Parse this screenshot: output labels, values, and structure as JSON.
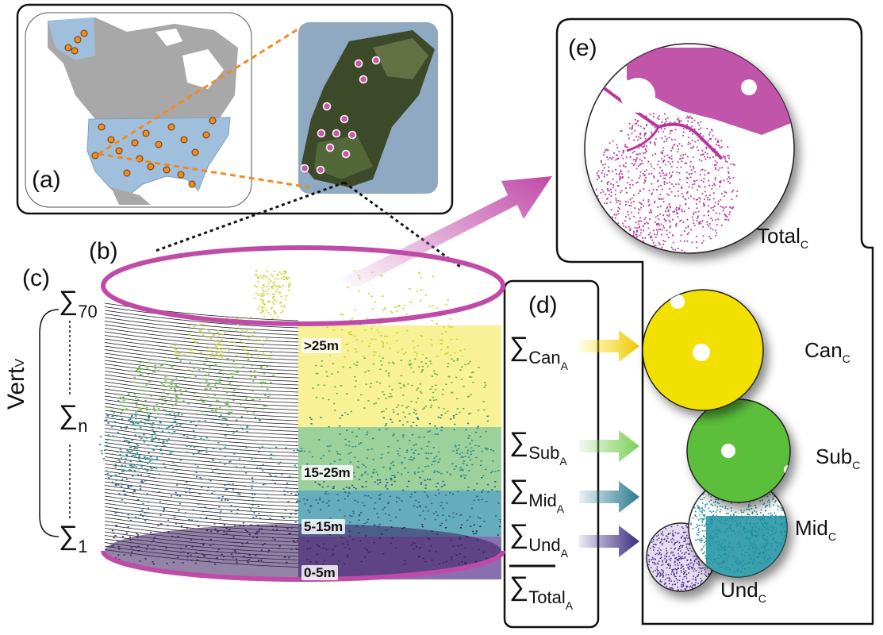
{
  "panels": {
    "a": "(a)",
    "b": "(b)",
    "c": "(c)",
    "d": "(d)",
    "e": "(e)"
  },
  "height_bands": [
    ">25m",
    "15-25m",
    "5-15m",
    "0-5m"
  ],
  "vertical": {
    "label": "Vert",
    "label_sub": "V",
    "sigma_top": "∑",
    "sigma_top_sub": "70",
    "sigma_mid": "∑",
    "sigma_mid_sub": "n",
    "sigma_bottom": "∑",
    "sigma_bottom_sub": "1"
  },
  "sums": [
    {
      "sigma": "∑",
      "name": "Can",
      "sub": "A"
    },
    {
      "sigma": "∑",
      "name": "Sub",
      "sub": "A"
    },
    {
      "sigma": "∑",
      "name": "Mid",
      "sub": "A"
    },
    {
      "sigma": "∑",
      "name": "Und",
      "sub": "A"
    },
    {
      "sigma": "∑",
      "name": "Total",
      "sub": "A"
    }
  ],
  "outputs": [
    {
      "name": "Total",
      "sub": "C",
      "color": "#b5379b"
    },
    {
      "name": "Can",
      "sub": "C",
      "color": "#f2e100"
    },
    {
      "name": "Sub",
      "sub": "C",
      "color": "#5cbf3a"
    },
    {
      "name": "Mid",
      "sub": "C",
      "color": "#1a8fa0"
    },
    {
      "name": "Und",
      "sub": "C",
      "color": "#4b2a85"
    }
  ],
  "colors": {
    "magenta": "#c04aa8",
    "orange_site": "#f28a20",
    "land_blue": "#9fbfdc",
    "land_grey": "#a8a8a8",
    "water_blue": "#8ea9c1",
    "canopy_yellow": "#f8ef8a",
    "sub_green": "#8cc98a",
    "mid_teal": "#4a9fb0",
    "und_purple": "#6b4d9e"
  }
}
